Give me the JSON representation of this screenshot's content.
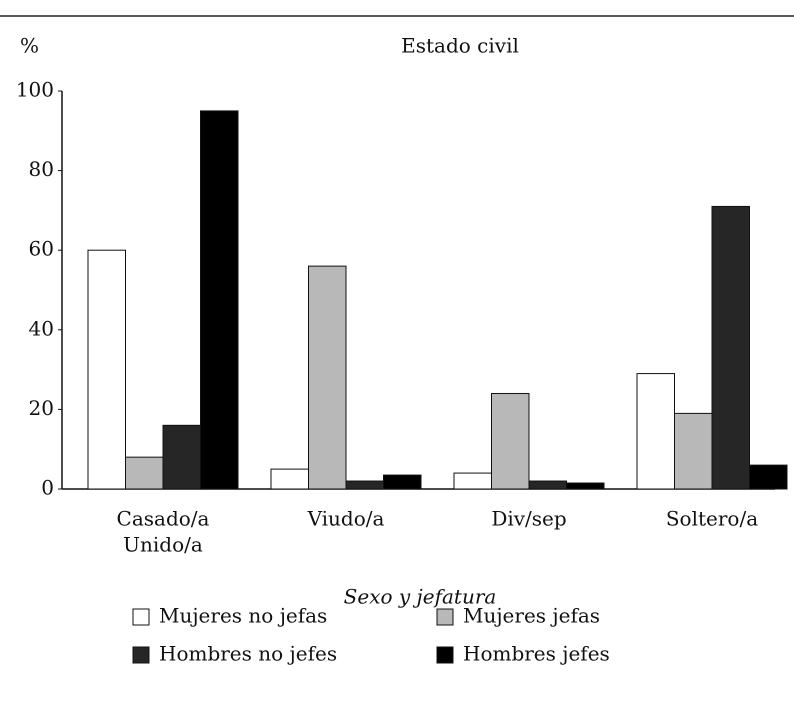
{
  "chart_data": {
    "type": "bar",
    "title": "Estado civil",
    "y_label": "%",
    "legend_title": "Sexo y jefatura",
    "categories": [
      [
        "Casado/a",
        "Unido/a"
      ],
      [
        "Viudo/a"
      ],
      [
        "Div/sep"
      ],
      [
        "Soltero/a"
      ]
    ],
    "series": [
      {
        "name": "Mujeres no jefas",
        "color": "#ffffff",
        "values": [
          60,
          5,
          4,
          29
        ]
      },
      {
        "name": "Mujeres jefas",
        "color": "#b8b8b8",
        "values": [
          8,
          56,
          24,
          19
        ]
      },
      {
        "name": "Hombres no jefes",
        "color": "#262626",
        "values": [
          16,
          2,
          2,
          71
        ]
      },
      {
        "name": "Hombres jefes",
        "color": "#000000",
        "values": [
          95,
          3.5,
          1.5,
          6
        ]
      }
    ],
    "ylim": [
      0,
      100
    ],
    "yticks": [
      0,
      20,
      40,
      60,
      80,
      100
    ],
    "grid": false
  }
}
